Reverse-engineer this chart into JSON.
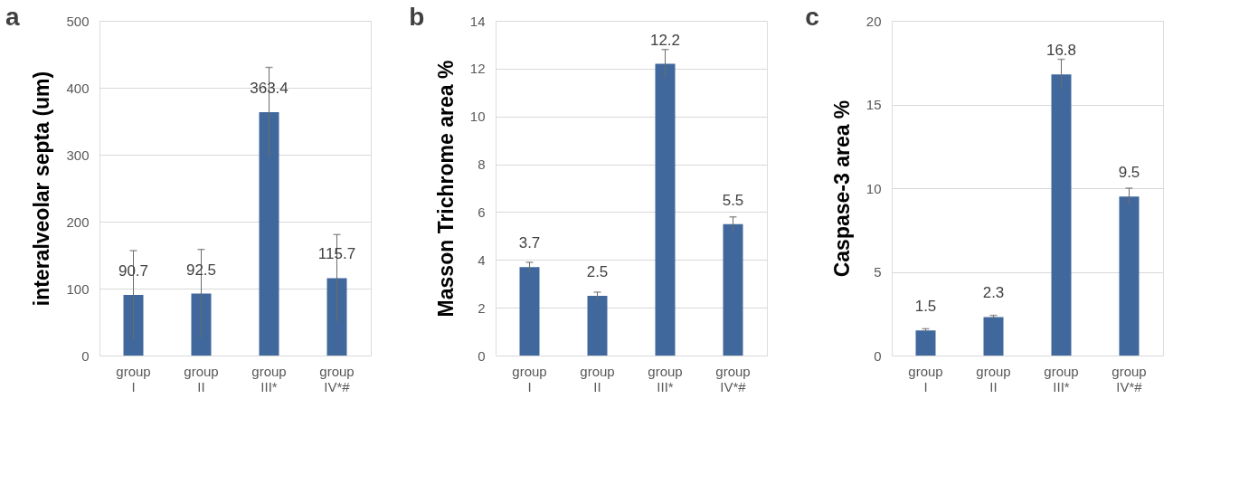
{
  "chart_data": [
    {
      "type": "bar",
      "title": "a",
      "ylabel": "interalveolar septa (um)",
      "categories": [
        "group I",
        "group II",
        "group III*",
        "group IV*#"
      ],
      "values": [
        90.7,
        92.5,
        363.4,
        115.7
      ],
      "errors": [
        66,
        66,
        67,
        65
      ],
      "color": "#41689c",
      "ylim": [
        0,
        500
      ],
      "yticks": [
        0,
        100,
        200,
        300,
        400,
        500
      ],
      "grid": "y",
      "data_labels": true
    },
    {
      "type": "bar",
      "title": "b",
      "ylabel": "Masson Trichrome area %",
      "categories": [
        "group I",
        "group II",
        "group III*",
        "group IV*#"
      ],
      "values": [
        3.7,
        2.5,
        12.2,
        5.5
      ],
      "errors": [
        0.2,
        0.15,
        0.6,
        0.3
      ],
      "color": "#41689c",
      "ylim": [
        0,
        14
      ],
      "yticks": [
        0,
        2,
        4,
        6,
        8,
        10,
        12,
        14
      ],
      "grid": "y",
      "data_labels": true
    },
    {
      "type": "bar",
      "title": "c",
      "ylabel": "Caspase-3 area %",
      "categories": [
        "group I",
        "group II",
        "group III*",
        "group IV*#"
      ],
      "values": [
        1.5,
        2.3,
        16.8,
        9.5
      ],
      "errors": [
        0.1,
        0.1,
        0.9,
        0.5
      ],
      "color": "#41689c",
      "ylim": [
        0,
        20
      ],
      "yticks": [
        0,
        5,
        10,
        15,
        20
      ],
      "grid": "y",
      "data_labels": true
    }
  ]
}
